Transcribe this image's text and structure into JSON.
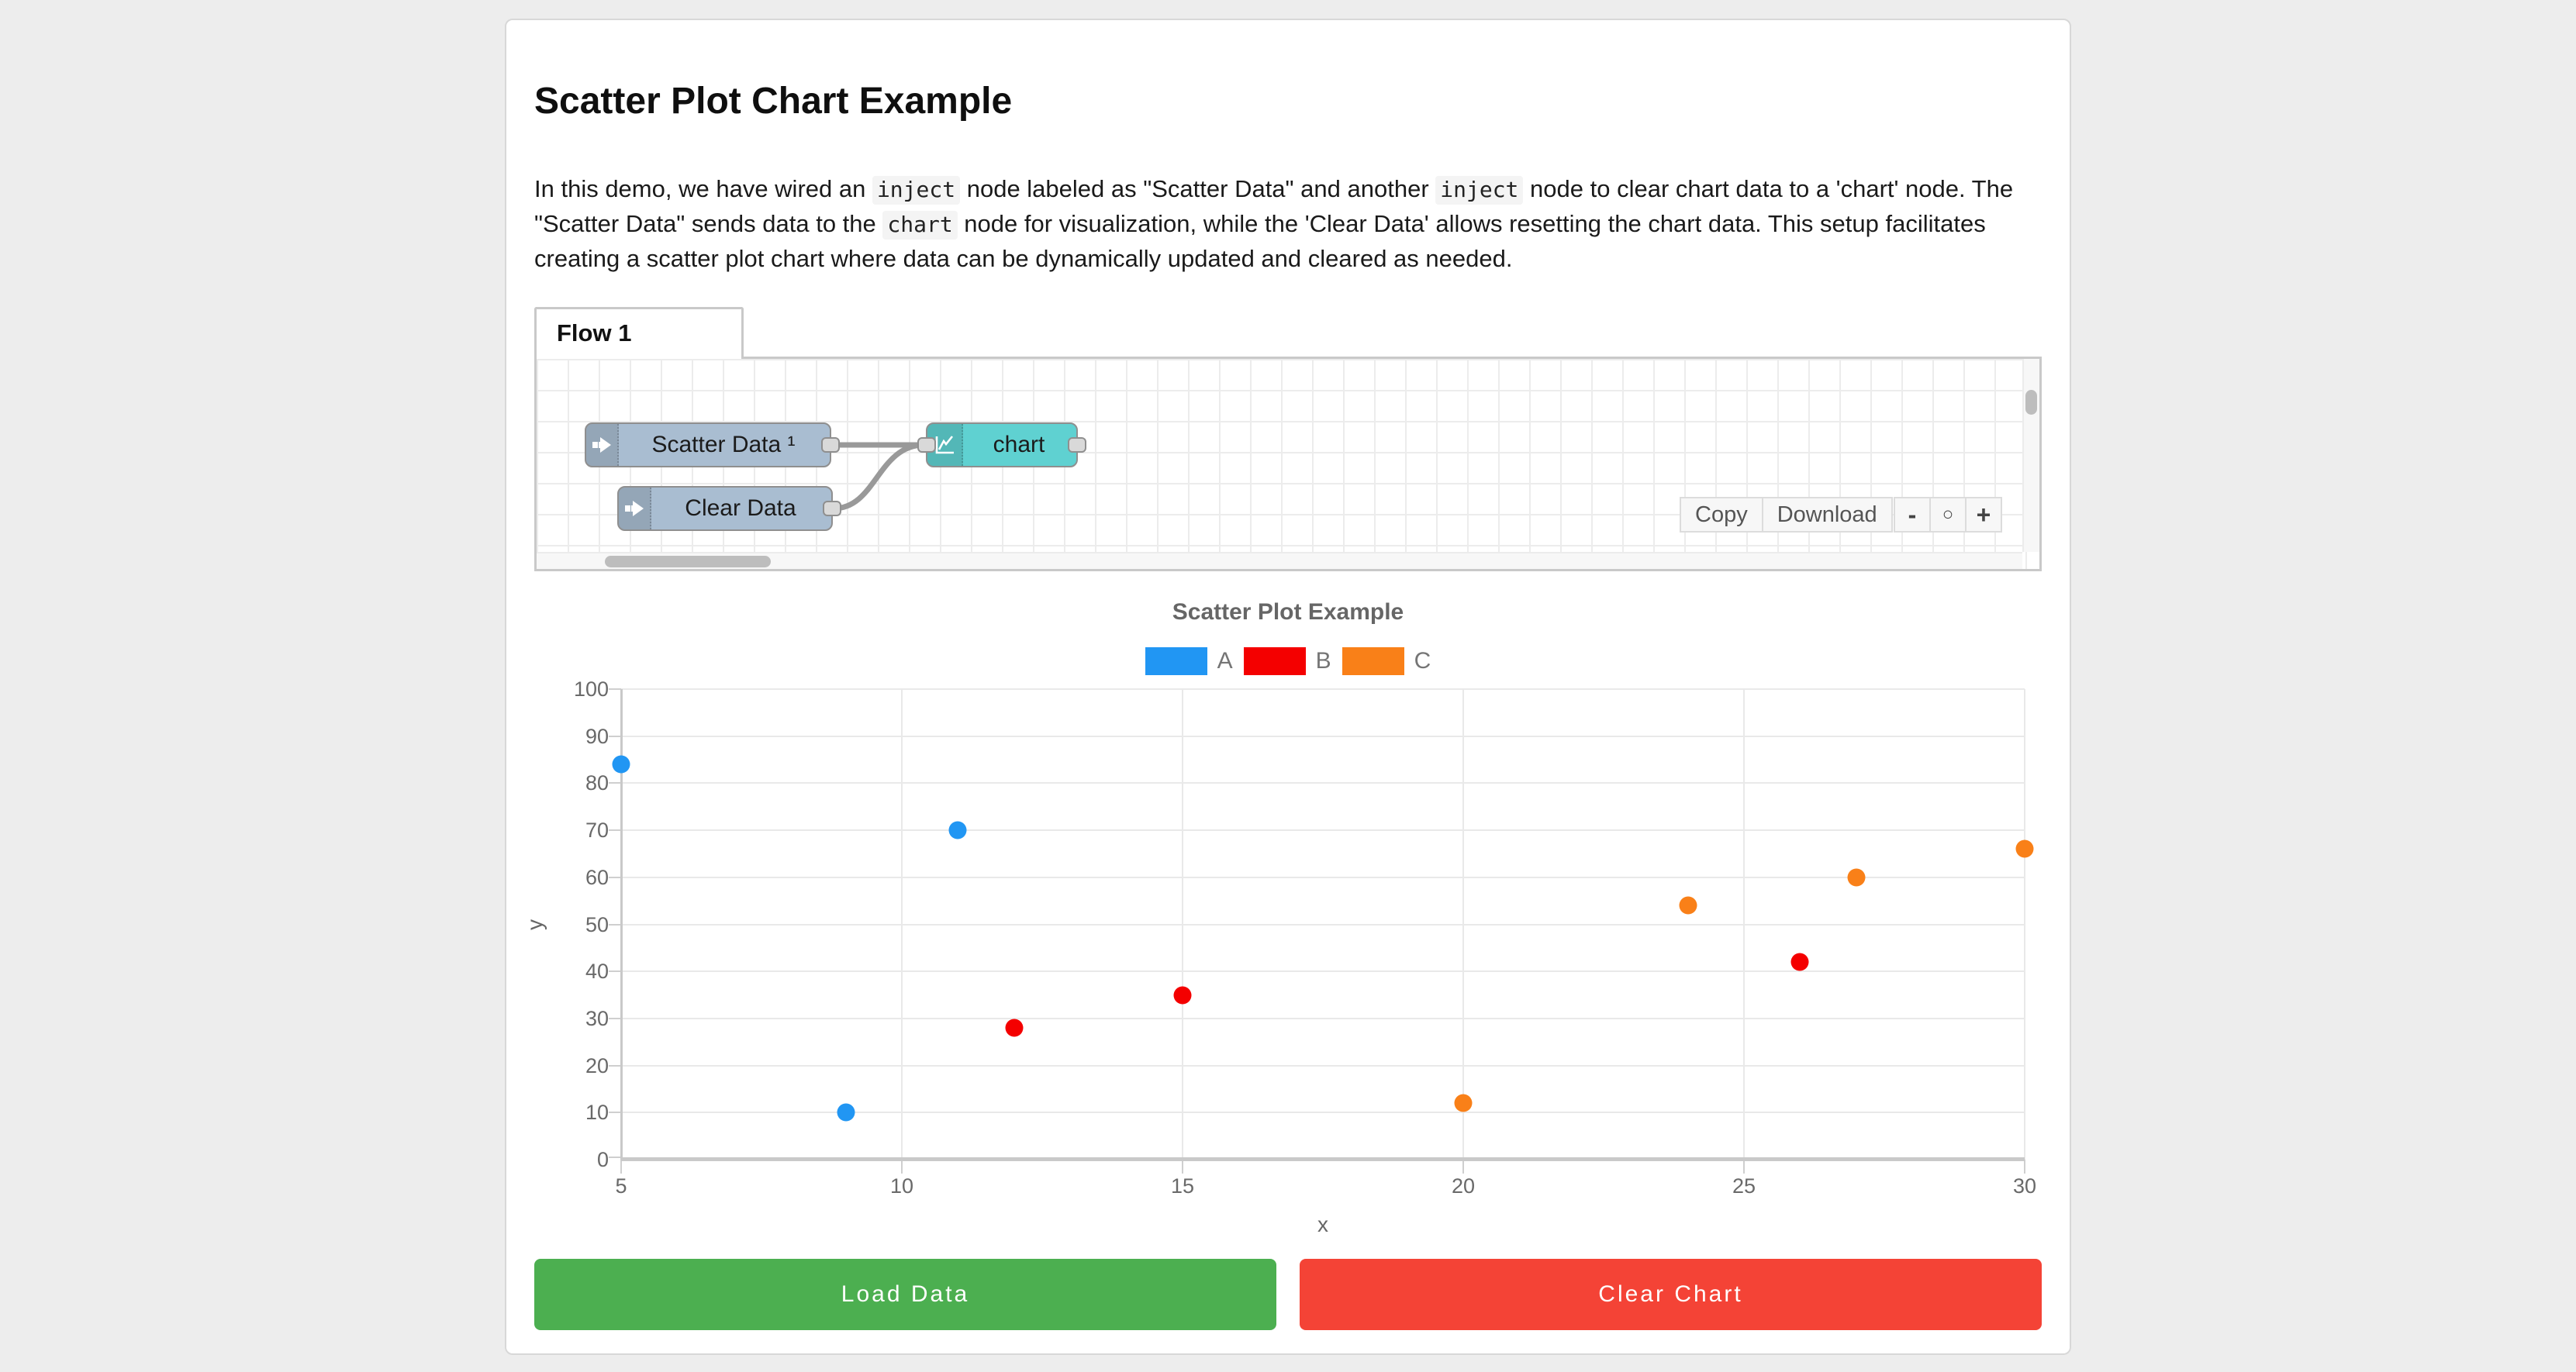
{
  "page": {
    "title": "Scatter Plot Chart Example"
  },
  "intro": {
    "segments": [
      {
        "type": "text",
        "value": "In this demo, we have wired an "
      },
      {
        "type": "code",
        "value": "inject"
      },
      {
        "type": "text",
        "value": " node labeled as \"Scatter Data\" and another "
      },
      {
        "type": "code",
        "value": "inject"
      },
      {
        "type": "text",
        "value": " node to clear chart data to a 'chart' node. The \"Scatter Data\" sends data to the "
      },
      {
        "type": "code",
        "value": "chart"
      },
      {
        "type": "text",
        "value": " node for visualization, while the 'Clear Data' allows resetting the chart data. This setup facilitates creating a scatter plot chart where data can be dynamically updated and cleared as needed."
      }
    ]
  },
  "flow": {
    "tab_label": "Flow 1",
    "nodes": [
      {
        "id": "scatter-data",
        "label": "Scatter Data ¹",
        "type": "inject",
        "color": "#a9bdd1"
      },
      {
        "id": "clear-data",
        "label": "Clear Data",
        "type": "inject",
        "color": "#a9bdd1"
      },
      {
        "id": "chart",
        "label": "chart",
        "type": "chart",
        "color": "#5fd1d1"
      }
    ],
    "toolbar": {
      "copy_label": "Copy",
      "download_label": "Download",
      "zoom_out_label": "-",
      "zoom_reset_label": "○",
      "zoom_in_label": "+"
    }
  },
  "chart_data": {
    "type": "scatter",
    "title": "Scatter Plot Example",
    "xlabel": "x",
    "ylabel": "y",
    "xlim": [
      5,
      30
    ],
    "ylim": [
      0,
      100
    ],
    "x_ticks": [
      5,
      10,
      15,
      20,
      25,
      30
    ],
    "y_ticks": [
      0,
      10,
      20,
      30,
      40,
      50,
      60,
      70,
      80,
      90,
      100
    ],
    "grid": true,
    "legend_position": "top",
    "series": [
      {
        "name": "A",
        "color": "#2196f3",
        "points": [
          [
            5,
            84
          ],
          [
            9,
            10
          ],
          [
            11,
            70
          ]
        ]
      },
      {
        "name": "B",
        "color": "#f40000",
        "points": [
          [
            12,
            28
          ],
          [
            15,
            35
          ],
          [
            26,
            42
          ]
        ]
      },
      {
        "name": "C",
        "color": "#f98018",
        "points": [
          [
            20,
            12
          ],
          [
            24,
            54
          ],
          [
            27,
            60
          ],
          [
            30,
            66
          ]
        ]
      }
    ]
  },
  "actions": {
    "load_label": "Load Data",
    "load_color": "#4caf50",
    "clear_label": "Clear Chart",
    "clear_color": "#f44336"
  }
}
